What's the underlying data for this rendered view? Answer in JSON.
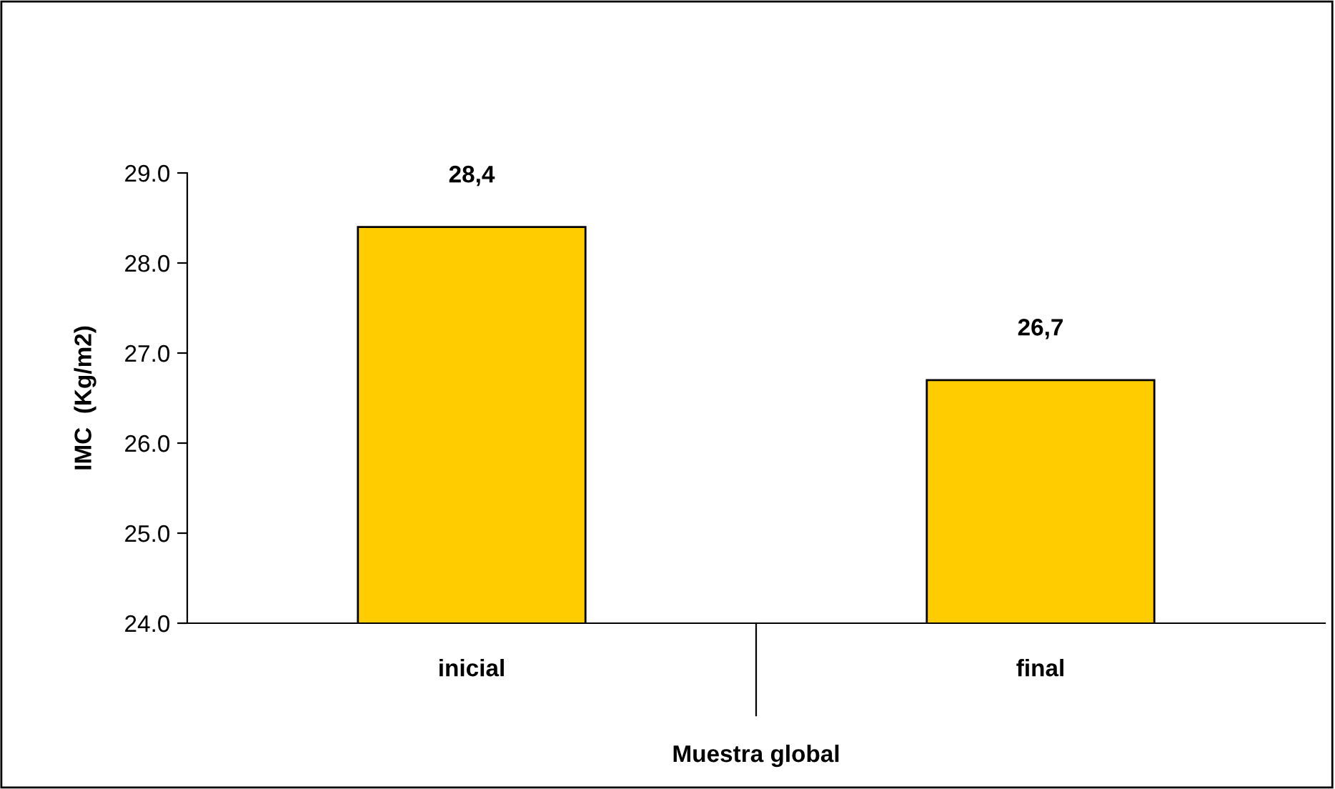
{
  "chart_data": {
    "type": "bar",
    "categories": [
      "inicial",
      "final"
    ],
    "values": [
      28.4,
      26.7
    ],
    "value_labels": [
      "28,4",
      "26,7"
    ],
    "color": "#ffcc00",
    "ylabel": "IMC  (Kg/m2)",
    "xlabel": "Muestra global",
    "ylim": [
      24,
      29
    ],
    "yticks": [
      {
        "value": 24,
        "label": "24.0"
      },
      {
        "value": 25,
        "label": "25.0"
      },
      {
        "value": 26,
        "label": "26.0"
      },
      {
        "value": 27,
        "label": "27.0"
      },
      {
        "value": 28,
        "label": "28.0"
      },
      {
        "value": 29,
        "label": "29.0"
      }
    ],
    "grid": false,
    "legend": false
  }
}
